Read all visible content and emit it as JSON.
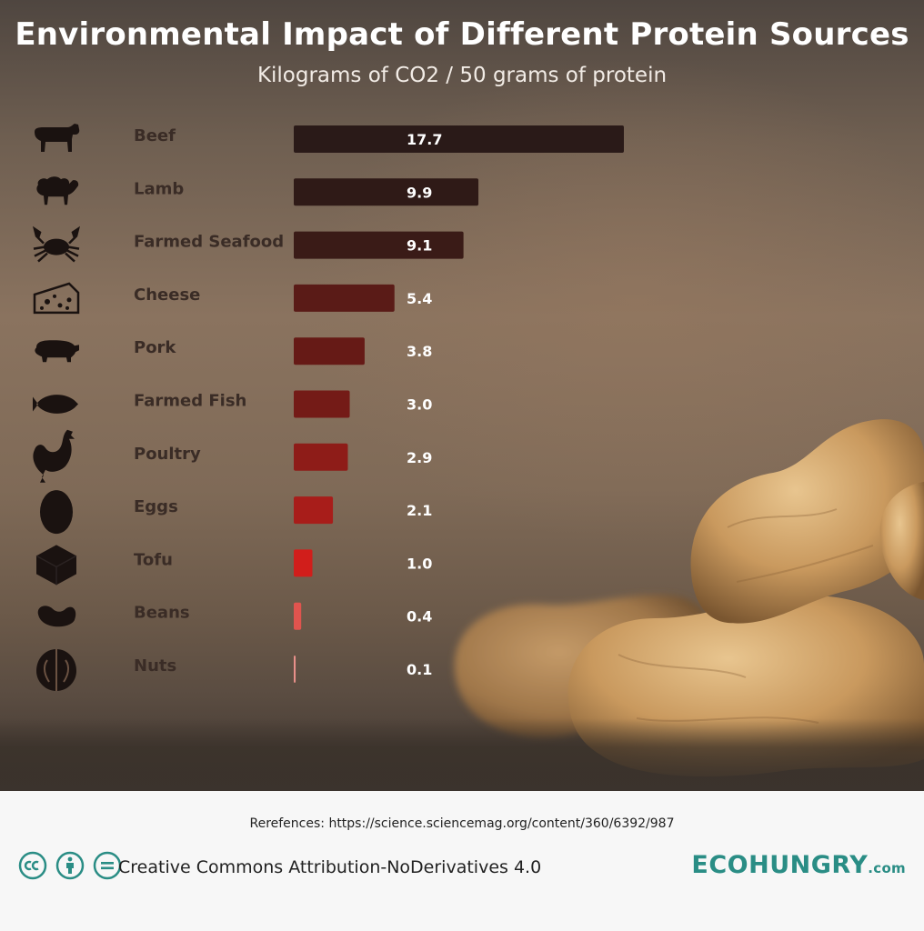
{
  "header": {
    "title": "Environmental Impact of Different Protein Sources",
    "subtitle": "Kilograms of CO2 / 50 grams of protein"
  },
  "chart_data": {
    "type": "bar",
    "orientation": "horizontal",
    "title": "Environmental Impact of Different Protein Sources",
    "subtitle": "Kilograms of CO2 / 50 grams of protein",
    "categories": [
      "Beef",
      "Lamb",
      "Farmed Seafood",
      "Cheese",
      "Pork",
      "Farmed Fish",
      "Poultry",
      "Eggs",
      "Tofu",
      "Beans",
      "Nuts"
    ],
    "values": [
      17.7,
      9.9,
      9.1,
      5.4,
      3.8,
      3.0,
      2.9,
      2.1,
      1.0,
      0.4,
      0.1
    ],
    "value_labels": [
      "17.7",
      "9.9",
      "9.1",
      "5.4",
      "3.8",
      "3.0",
      "2.9",
      "2.1",
      "1.0",
      "0.4",
      "0.1"
    ],
    "icons": [
      "cow-icon",
      "sheep-icon",
      "crab-icon",
      "cheese-icon",
      "pig-icon",
      "fish-icon",
      "chicken-icon",
      "egg-icon",
      "tofu-icon",
      "bean-icon",
      "walnut-icon"
    ],
    "bar_colors": [
      "#2a1a18",
      "#2f1a17",
      "#3a1b17",
      "#5a1b17",
      "#661a16",
      "#741b17",
      "#8e1c18",
      "#a81d1a",
      "#d11e1b",
      "#e0544e",
      "#e8908a"
    ],
    "xlim": [
      0,
      17.7
    ],
    "grid": false,
    "legend": "none"
  },
  "footer": {
    "references": "Rerefences: https://science.sciencemag.org/content/360/6392/987",
    "license": "Creative Commons Attribution-NoDerivatives 4.0",
    "license_icons": [
      "cc-icon",
      "attribution-icon",
      "noderivatives-icon"
    ],
    "brand_main": "ECOHUNGRY",
    "brand_suffix": ".com",
    "brand_color": "#2a8d85"
  }
}
